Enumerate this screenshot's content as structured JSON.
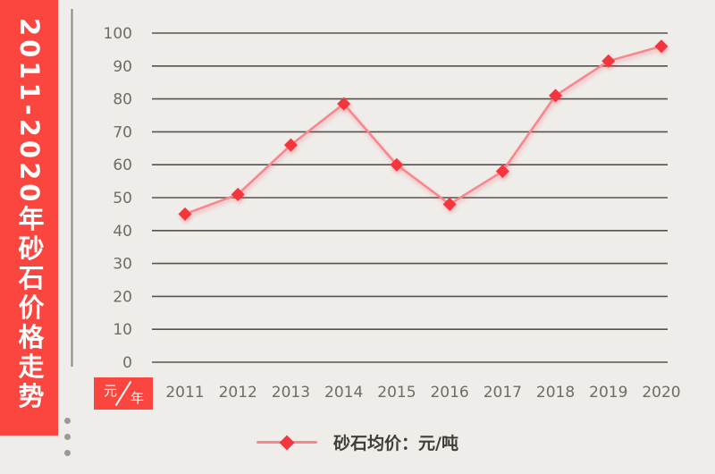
{
  "banner": {
    "title": "2011-2020年砂石价格走势"
  },
  "unit_badge": {
    "numerator": "元",
    "denominator": "年"
  },
  "legend": {
    "label": "砂石均价：元/吨"
  },
  "chart_data": {
    "type": "line",
    "title": "2011-2020年砂石价格走势",
    "categories": [
      "2011",
      "2012",
      "2013",
      "2014",
      "2015",
      "2016",
      "2017",
      "2018",
      "2019",
      "2020"
    ],
    "series": [
      {
        "name": "砂石均价：元/吨",
        "values": [
          45,
          51,
          66,
          78.5,
          60,
          48,
          58,
          81,
          91.5,
          96
        ]
      }
    ],
    "xlabel": "年",
    "ylabel": "元",
    "ylim": [
      0,
      100
    ],
    "yticks": [
      0,
      10,
      20,
      30,
      40,
      50,
      60,
      70,
      80,
      90,
      100
    ],
    "grid": "horizontal",
    "legend_position": "bottom",
    "marker": "diamond"
  },
  "colors": {
    "background": "#EFEDEA",
    "banner_red": "#FA463F",
    "marker_red": "#F4363E",
    "line_salmon": "#F9868B",
    "gridline": "#56534E",
    "axis_line": "#8B8985",
    "tick_label": "#6F6C66",
    "legend_text": "#403D39",
    "dot_gray": "#9C9A96"
  }
}
